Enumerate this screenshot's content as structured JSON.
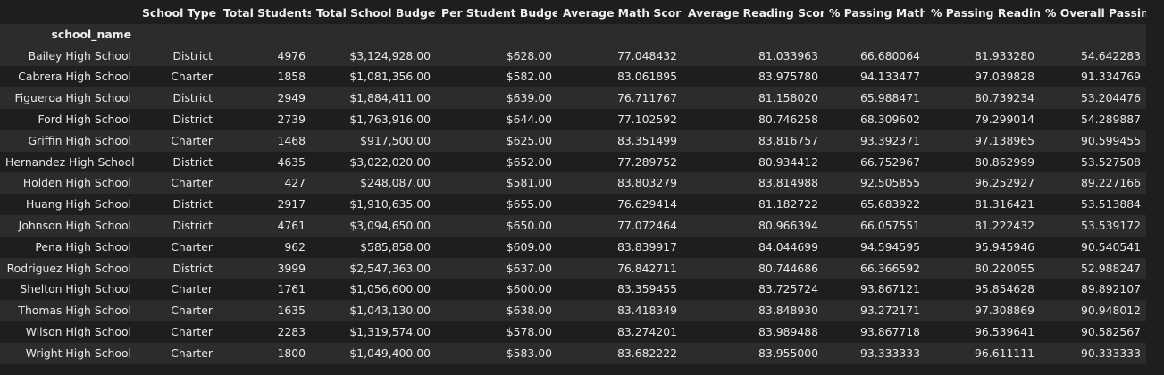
{
  "table": {
    "index_name": "school_name",
    "columns": [
      "School Type",
      "Total Students",
      "Total School Budget",
      "Per Student Budget",
      "Average Math Score",
      "Average Reading Score",
      "% Passing Math",
      "% Passing Reading",
      "% Overall Passing"
    ],
    "rows": [
      {
        "name": "Bailey High School",
        "cells": [
          "District",
          "4976",
          "$3,124,928.00",
          "$628.00",
          "77.048432",
          "81.033963",
          "66.680064",
          "81.933280",
          "54.642283"
        ]
      },
      {
        "name": "Cabrera High School",
        "cells": [
          "Charter",
          "1858",
          "$1,081,356.00",
          "$582.00",
          "83.061895",
          "83.975780",
          "94.133477",
          "97.039828",
          "91.334769"
        ]
      },
      {
        "name": "Figueroa High School",
        "cells": [
          "District",
          "2949",
          "$1,884,411.00",
          "$639.00",
          "76.711767",
          "81.158020",
          "65.988471",
          "80.739234",
          "53.204476"
        ]
      },
      {
        "name": "Ford High School",
        "cells": [
          "District",
          "2739",
          "$1,763,916.00",
          "$644.00",
          "77.102592",
          "80.746258",
          "68.309602",
          "79.299014",
          "54.289887"
        ]
      },
      {
        "name": "Griffin High School",
        "cells": [
          "Charter",
          "1468",
          "$917,500.00",
          "$625.00",
          "83.351499",
          "83.816757",
          "93.392371",
          "97.138965",
          "90.599455"
        ]
      },
      {
        "name": "Hernandez High School",
        "cells": [
          "District",
          "4635",
          "$3,022,020.00",
          "$652.00",
          "77.289752",
          "80.934412",
          "66.752967",
          "80.862999",
          "53.527508"
        ]
      },
      {
        "name": "Holden High School",
        "cells": [
          "Charter",
          "427",
          "$248,087.00",
          "$581.00",
          "83.803279",
          "83.814988",
          "92.505855",
          "96.252927",
          "89.227166"
        ]
      },
      {
        "name": "Huang High School",
        "cells": [
          "District",
          "2917",
          "$1,910,635.00",
          "$655.00",
          "76.629414",
          "81.182722",
          "65.683922",
          "81.316421",
          "53.513884"
        ]
      },
      {
        "name": "Johnson High School",
        "cells": [
          "District",
          "4761",
          "$3,094,650.00",
          "$650.00",
          "77.072464",
          "80.966394",
          "66.057551",
          "81.222432",
          "53.539172"
        ]
      },
      {
        "name": "Pena High School",
        "cells": [
          "Charter",
          "962",
          "$585,858.00",
          "$609.00",
          "83.839917",
          "84.044699",
          "94.594595",
          "95.945946",
          "90.540541"
        ]
      },
      {
        "name": "Rodriguez High School",
        "cells": [
          "District",
          "3999",
          "$2,547,363.00",
          "$637.00",
          "76.842711",
          "80.744686",
          "66.366592",
          "80.220055",
          "52.988247"
        ]
      },
      {
        "name": "Shelton High School",
        "cells": [
          "Charter",
          "1761",
          "$1,056,600.00",
          "$600.00",
          "83.359455",
          "83.725724",
          "93.867121",
          "95.854628",
          "89.892107"
        ]
      },
      {
        "name": "Thomas High School",
        "cells": [
          "Charter",
          "1635",
          "$1,043,130.00",
          "$638.00",
          "83.418349",
          "83.848930",
          "93.272171",
          "97.308869",
          "90.948012"
        ]
      },
      {
        "name": "Wilson High School",
        "cells": [
          "Charter",
          "2283",
          "$1,319,574.00",
          "$578.00",
          "83.274201",
          "83.989488",
          "93.867718",
          "96.539641",
          "90.582567"
        ]
      },
      {
        "name": "Wright High School",
        "cells": [
          "Charter",
          "1800",
          "$1,049,400.00",
          "$583.00",
          "83.682222",
          "83.955000",
          "93.333333",
          "96.611111",
          "90.333333"
        ]
      }
    ]
  }
}
